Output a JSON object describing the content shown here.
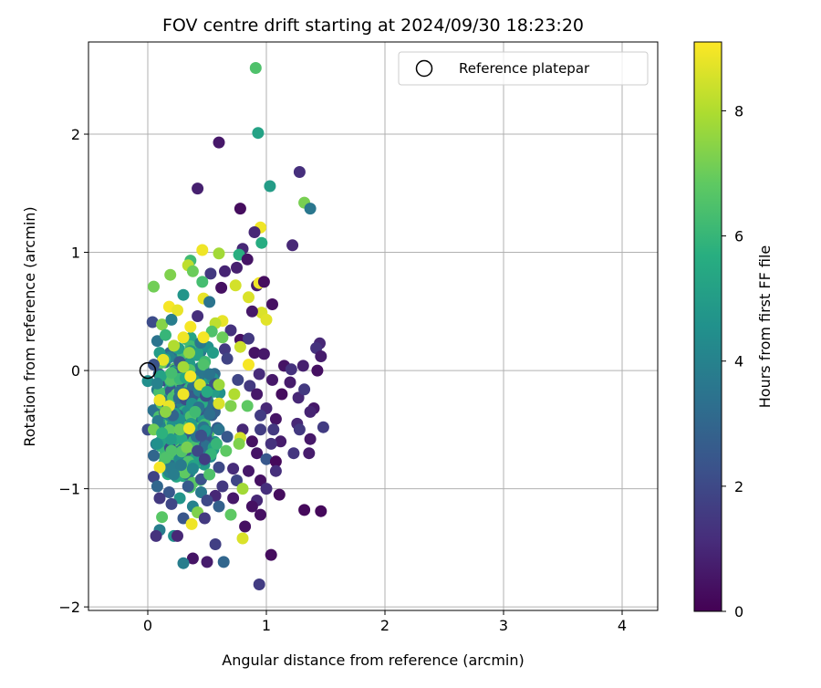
{
  "chart_data": {
    "type": "scatter",
    "title": "FOV centre drift starting at 2024/09/30 18:23:20",
    "xlabel": "Angular distance from reference (arcmin)",
    "ylabel": "Rotation from reference (arcmin)",
    "xlim": [
      -0.5,
      4.3
    ],
    "ylim": [
      -2.03,
      2.78
    ],
    "xticks": [
      0,
      1,
      2,
      3,
      4
    ],
    "yticks": [
      -2,
      -1,
      0,
      1,
      2
    ],
    "xtick_labels": [
      "0",
      "1",
      "2",
      "3",
      "4"
    ],
    "ytick_labels": [
      "−2",
      "−1",
      "0",
      "1",
      "2"
    ],
    "grid": true,
    "legend": {
      "placement": "top-right",
      "entries": [
        "Reference platepar"
      ]
    },
    "reference_point": {
      "label": "Reference platepar",
      "x": 0.0,
      "y": 0.0
    },
    "colorbar": {
      "label": "Hours from first FF file",
      "colormap": "viridis",
      "range": [
        0,
        9.1
      ],
      "ticks": [
        0,
        2,
        4,
        6,
        8
      ],
      "tick_labels": [
        "0",
        "2",
        "4",
        "6",
        "8"
      ]
    },
    "series": [
      {
        "points": [
          {
            "x": 0.91,
            "y": 2.56,
            "c": 6.5
          },
          {
            "x": 0.93,
            "y": 2.01,
            "c": 5.2
          },
          {
            "x": 0.6,
            "y": 1.93,
            "c": 0.6
          },
          {
            "x": 1.28,
            "y": 1.68,
            "c": 1.2
          },
          {
            "x": 1.03,
            "y": 1.56,
            "c": 5.0
          },
          {
            "x": 0.42,
            "y": 1.54,
            "c": 0.8
          },
          {
            "x": 1.32,
            "y": 1.42,
            "c": 7.2
          },
          {
            "x": 1.37,
            "y": 1.37,
            "c": 3.6
          },
          {
            "x": 0.78,
            "y": 1.37,
            "c": 0.3
          },
          {
            "x": 0.95,
            "y": 1.21,
            "c": 8.9
          },
          {
            "x": 0.9,
            "y": 1.17,
            "c": 1.0
          },
          {
            "x": 0.96,
            "y": 1.08,
            "c": 5.6
          },
          {
            "x": 1.22,
            "y": 1.06,
            "c": 1.0
          },
          {
            "x": 0.8,
            "y": 1.03,
            "c": 1.0
          },
          {
            "x": 0.77,
            "y": 0.98,
            "c": 5.7
          },
          {
            "x": 0.46,
            "y": 1.02,
            "c": 8.9
          },
          {
            "x": 0.6,
            "y": 0.99,
            "c": 7.8
          },
          {
            "x": 0.36,
            "y": 0.93,
            "c": 6.2
          },
          {
            "x": 0.34,
            "y": 0.89,
            "c": 8.2
          },
          {
            "x": 0.38,
            "y": 0.84,
            "c": 7.0
          },
          {
            "x": 0.19,
            "y": 0.81,
            "c": 7.3
          },
          {
            "x": 0.53,
            "y": 0.82,
            "c": 1.5
          },
          {
            "x": 0.65,
            "y": 0.84,
            "c": 0.9
          },
          {
            "x": 0.75,
            "y": 0.87,
            "c": 0.8
          },
          {
            "x": 0.84,
            "y": 0.94,
            "c": 0.5
          },
          {
            "x": 0.74,
            "y": 0.72,
            "c": 8.5
          },
          {
            "x": 0.92,
            "y": 0.72,
            "c": 0.7
          },
          {
            "x": 0.94,
            "y": 0.74,
            "c": 8.9
          },
          {
            "x": 0.98,
            "y": 0.75,
            "c": 0.3
          },
          {
            "x": 0.46,
            "y": 0.75,
            "c": 6.3
          },
          {
            "x": 0.05,
            "y": 0.71,
            "c": 7.1
          },
          {
            "x": 0.62,
            "y": 0.7,
            "c": 0.4
          },
          {
            "x": 0.85,
            "y": 0.62,
            "c": 8.6
          },
          {
            "x": 0.3,
            "y": 0.64,
            "c": 4.7
          },
          {
            "x": 0.47,
            "y": 0.61,
            "c": 8.8
          },
          {
            "x": 0.52,
            "y": 0.58,
            "c": 3.5
          },
          {
            "x": 1.05,
            "y": 0.56,
            "c": 0.4
          },
          {
            "x": 0.18,
            "y": 0.54,
            "c": 9.0
          },
          {
            "x": 0.25,
            "y": 0.51,
            "c": 8.8
          },
          {
            "x": 0.96,
            "y": 0.49,
            "c": 8.6
          },
          {
            "x": 1.0,
            "y": 0.43,
            "c": 8.7
          },
          {
            "x": 0.88,
            "y": 0.5,
            "c": 0.6
          },
          {
            "x": 0.42,
            "y": 0.46,
            "c": 1.2
          },
          {
            "x": 0.63,
            "y": 0.42,
            "c": 8.8
          },
          {
            "x": 0.04,
            "y": 0.41,
            "c": 2.1
          },
          {
            "x": 0.12,
            "y": 0.39,
            "c": 7.4
          },
          {
            "x": 0.2,
            "y": 0.43,
            "c": 3.8
          },
          {
            "x": 0.57,
            "y": 0.4,
            "c": 8.2
          },
          {
            "x": 0.36,
            "y": 0.37,
            "c": 9.0
          },
          {
            "x": 0.54,
            "y": 0.33,
            "c": 6.5
          },
          {
            "x": 0.7,
            "y": 0.34,
            "c": 1.3
          },
          {
            "x": 0.78,
            "y": 0.26,
            "c": 0.4
          },
          {
            "x": 0.85,
            "y": 0.27,
            "c": 1.5
          },
          {
            "x": 0.3,
            "y": 0.28,
            "c": 8.9
          },
          {
            "x": 0.47,
            "y": 0.28,
            "c": 9.0
          },
          {
            "x": 0.08,
            "y": 0.25,
            "c": 3.5
          },
          {
            "x": 0.15,
            "y": 0.3,
            "c": 6.0
          },
          {
            "x": 0.63,
            "y": 0.28,
            "c": 7.0
          },
          {
            "x": 0.22,
            "y": 0.21,
            "c": 8.0
          },
          {
            "x": 0.78,
            "y": 0.2,
            "c": 8.4
          },
          {
            "x": 1.45,
            "y": 0.23,
            "c": 1.0
          },
          {
            "x": 1.42,
            "y": 0.19,
            "c": 1.3
          },
          {
            "x": 1.46,
            "y": 0.12,
            "c": 0.7
          },
          {
            "x": 0.1,
            "y": 0.15,
            "c": 5.0
          },
          {
            "x": 0.35,
            "y": 0.15,
            "c": 7.5
          },
          {
            "x": 0.55,
            "y": 0.15,
            "c": 5.0
          },
          {
            "x": 0.65,
            "y": 0.18,
            "c": 1.5
          },
          {
            "x": 0.9,
            "y": 0.15,
            "c": 0.5
          },
          {
            "x": 0.98,
            "y": 0.14,
            "c": 0.6
          },
          {
            "x": 0.13,
            "y": 0.09,
            "c": 8.8
          },
          {
            "x": 0.05,
            "y": 0.05,
            "c": 2.3
          },
          {
            "x": 0.3,
            "y": 0.03,
            "c": 7.8
          },
          {
            "x": 0.47,
            "y": 0.05,
            "c": 6.5
          },
          {
            "x": 0.85,
            "y": 0.05,
            "c": 9.0
          },
          {
            "x": 0.67,
            "y": 0.1,
            "c": 1.8
          },
          {
            "x": 1.15,
            "y": 0.04,
            "c": 0.5
          },
          {
            "x": 1.21,
            "y": 0.01,
            "c": 1.3
          },
          {
            "x": 1.31,
            "y": 0.04,
            "c": 0.8
          },
          {
            "x": 1.43,
            "y": 0.0,
            "c": 0.4
          },
          {
            "x": 0.2,
            "y": -0.02,
            "c": 6.3
          },
          {
            "x": 0.36,
            "y": -0.05,
            "c": 9.0
          },
          {
            "x": 0.52,
            "y": -0.03,
            "c": 3.5
          },
          {
            "x": 0.76,
            "y": -0.08,
            "c": 1.9
          },
          {
            "x": 0.94,
            "y": -0.03,
            "c": 1.1
          },
          {
            "x": 1.05,
            "y": -0.08,
            "c": 0.6
          },
          {
            "x": 0.08,
            "y": -0.11,
            "c": 4.0
          },
          {
            "x": 0.44,
            "y": -0.12,
            "c": 8.5
          },
          {
            "x": 0.6,
            "y": -0.12,
            "c": 7.7
          },
          {
            "x": 0.86,
            "y": -0.13,
            "c": 1.5
          },
          {
            "x": 1.2,
            "y": -0.1,
            "c": 0.7
          },
          {
            "x": 0.3,
            "y": -0.2,
            "c": 8.9
          },
          {
            "x": 0.5,
            "y": -0.18,
            "c": 5.5
          },
          {
            "x": 0.73,
            "y": -0.2,
            "c": 8.0
          },
          {
            "x": 0.92,
            "y": -0.2,
            "c": 0.6
          },
          {
            "x": 1.13,
            "y": -0.2,
            "c": 0.3
          },
          {
            "x": 1.27,
            "y": -0.23,
            "c": 1.0
          },
          {
            "x": 1.32,
            "y": -0.16,
            "c": 1.5
          },
          {
            "x": 0.1,
            "y": -0.25,
            "c": 8.9
          },
          {
            "x": 0.18,
            "y": -0.3,
            "c": 8.8
          },
          {
            "x": 0.6,
            "y": -0.28,
            "c": 8.6
          },
          {
            "x": 0.7,
            "y": -0.3,
            "c": 7.3
          },
          {
            "x": 0.84,
            "y": -0.3,
            "c": 6.8
          },
          {
            "x": 1.0,
            "y": -0.32,
            "c": 1.0
          },
          {
            "x": 1.4,
            "y": -0.32,
            "c": 0.6
          },
          {
            "x": 1.37,
            "y": -0.35,
            "c": 0.9
          },
          {
            "x": 0.15,
            "y": -0.35,
            "c": 7.5
          },
          {
            "x": 0.4,
            "y": -0.35,
            "c": 6.2
          },
          {
            "x": 0.52,
            "y": -0.37,
            "c": 3.3
          },
          {
            "x": 0.95,
            "y": -0.38,
            "c": 1.6
          },
          {
            "x": 1.08,
            "y": -0.41,
            "c": 0.5
          },
          {
            "x": 1.26,
            "y": -0.45,
            "c": 1.0
          },
          {
            "x": 1.48,
            "y": -0.48,
            "c": 1.6
          },
          {
            "x": 1.28,
            "y": -0.5,
            "c": 1.5
          },
          {
            "x": 0.05,
            "y": -0.5,
            "c": 7.1
          },
          {
            "x": 0.27,
            "y": -0.5,
            "c": 7.0
          },
          {
            "x": 0.35,
            "y": -0.49,
            "c": 8.9
          },
          {
            "x": 0.6,
            "y": -0.5,
            "c": 3.5
          },
          {
            "x": 0.8,
            "y": -0.5,
            "c": 1.0
          },
          {
            "x": 0.95,
            "y": -0.5,
            "c": 1.6
          },
          {
            "x": 1.06,
            "y": -0.5,
            "c": 1.5
          },
          {
            "x": 0.12,
            "y": -0.53,
            "c": 5.8
          },
          {
            "x": 0.45,
            "y": -0.55,
            "c": 2.2
          },
          {
            "x": 0.67,
            "y": -0.56,
            "c": 2.5
          },
          {
            "x": 0.78,
            "y": -0.57,
            "c": 8.5
          },
          {
            "x": 0.88,
            "y": -0.6,
            "c": 0.4
          },
          {
            "x": 1.12,
            "y": -0.6,
            "c": 0.7
          },
          {
            "x": 1.37,
            "y": -0.58,
            "c": 0.6
          },
          {
            "x": 0.08,
            "y": -0.62,
            "c": 4.5
          },
          {
            "x": 0.33,
            "y": -0.65,
            "c": 7.2
          },
          {
            "x": 0.58,
            "y": -0.62,
            "c": 6.0
          },
          {
            "x": 0.77,
            "y": -0.62,
            "c": 7.3
          },
          {
            "x": 1.04,
            "y": -0.62,
            "c": 1.3
          },
          {
            "x": 0.2,
            "y": -0.68,
            "c": 6.5
          },
          {
            "x": 0.42,
            "y": -0.68,
            "c": 2.0
          },
          {
            "x": 0.66,
            "y": -0.68,
            "c": 6.8
          },
          {
            "x": 0.92,
            "y": -0.7,
            "c": 0.5
          },
          {
            "x": 1.23,
            "y": -0.7,
            "c": 1.4
          },
          {
            "x": 1.36,
            "y": -0.7,
            "c": 0.7
          },
          {
            "x": 0.05,
            "y": -0.72,
            "c": 3.0
          },
          {
            "x": 0.15,
            "y": -0.74,
            "c": 6.5
          },
          {
            "x": 0.48,
            "y": -0.75,
            "c": 1.6
          },
          {
            "x": 1.0,
            "y": -0.75,
            "c": 2.5
          },
          {
            "x": 1.08,
            "y": -0.77,
            "c": 0.2
          },
          {
            "x": 0.28,
            "y": -0.8,
            "c": 3.7
          },
          {
            "x": 0.1,
            "y": -0.82,
            "c": 9.0
          },
          {
            "x": 0.38,
            "y": -0.83,
            "c": 4.2
          },
          {
            "x": 0.6,
            "y": -0.82,
            "c": 2.0
          },
          {
            "x": 0.72,
            "y": -0.83,
            "c": 1.1
          },
          {
            "x": 0.85,
            "y": -0.85,
            "c": 0.6
          },
          {
            "x": 1.08,
            "y": -0.85,
            "c": 1.2
          },
          {
            "x": 0.05,
            "y": -0.9,
            "c": 1.8
          },
          {
            "x": 0.22,
            "y": -0.88,
            "c": 3.8
          },
          {
            "x": 0.45,
            "y": -0.92,
            "c": 2.3
          },
          {
            "x": 0.52,
            "y": -0.88,
            "c": 6.5
          },
          {
            "x": 0.75,
            "y": -0.93,
            "c": 1.9
          },
          {
            "x": 0.95,
            "y": -0.93,
            "c": 0.4
          },
          {
            "x": 0.08,
            "y": -0.98,
            "c": 3.0
          },
          {
            "x": 0.34,
            "y": -0.98,
            "c": 2.6
          },
          {
            "x": 0.63,
            "y": -0.98,
            "c": 1.5
          },
          {
            "x": 0.8,
            "y": -1.0,
            "c": 7.8
          },
          {
            "x": 1.0,
            "y": -1.0,
            "c": 1.2
          },
          {
            "x": 1.11,
            "y": -1.05,
            "c": 0.3
          },
          {
            "x": 0.18,
            "y": -1.03,
            "c": 2.5
          },
          {
            "x": 0.45,
            "y": -1.03,
            "c": 3.7
          },
          {
            "x": 0.57,
            "y": -1.06,
            "c": 1.0
          },
          {
            "x": 0.1,
            "y": -1.08,
            "c": 1.5
          },
          {
            "x": 0.27,
            "y": -1.08,
            "c": 4.7
          },
          {
            "x": 0.5,
            "y": -1.1,
            "c": 2.0
          },
          {
            "x": 0.72,
            "y": -1.08,
            "c": 0.6
          },
          {
            "x": 0.92,
            "y": -1.1,
            "c": 1.0
          },
          {
            "x": 0.2,
            "y": -1.13,
            "c": 1.9
          },
          {
            "x": 0.38,
            "y": -1.15,
            "c": 4.0
          },
          {
            "x": 0.6,
            "y": -1.15,
            "c": 2.8
          },
          {
            "x": 0.88,
            "y": -1.15,
            "c": 0.4
          },
          {
            "x": 1.32,
            "y": -1.18,
            "c": 0.2
          },
          {
            "x": 1.46,
            "y": -1.19,
            "c": 0.2
          },
          {
            "x": 0.42,
            "y": -1.2,
            "c": 7.3
          },
          {
            "x": 0.12,
            "y": -1.24,
            "c": 6.7
          },
          {
            "x": 0.3,
            "y": -1.25,
            "c": 2.4
          },
          {
            "x": 0.48,
            "y": -1.25,
            "c": 1.5
          },
          {
            "x": 0.7,
            "y": -1.22,
            "c": 6.8
          },
          {
            "x": 0.95,
            "y": -1.22,
            "c": 0.4
          },
          {
            "x": 0.37,
            "y": -1.3,
            "c": 8.9
          },
          {
            "x": 0.82,
            "y": -1.32,
            "c": 0.4
          },
          {
            "x": 0.1,
            "y": -1.35,
            "c": 3.8
          },
          {
            "x": 0.07,
            "y": -1.4,
            "c": 1.3
          },
          {
            "x": 0.22,
            "y": -1.4,
            "c": 4.5
          },
          {
            "x": 0.25,
            "y": -1.4,
            "c": 1.0
          },
          {
            "x": 0.8,
            "y": -1.42,
            "c": 8.6
          },
          {
            "x": 0.57,
            "y": -1.47,
            "c": 1.7
          },
          {
            "x": 1.04,
            "y": -1.56,
            "c": 0.3
          },
          {
            "x": 0.38,
            "y": -1.59,
            "c": 0.5
          },
          {
            "x": 0.3,
            "y": -1.63,
            "c": 3.8
          },
          {
            "x": 0.5,
            "y": -1.62,
            "c": 0.7
          },
          {
            "x": 0.64,
            "y": -1.62,
            "c": 3.0
          },
          {
            "x": 0.94,
            "y": -1.81,
            "c": 1.6
          }
        ]
      },
      {
        "dense_cluster": true,
        "x_range": [
          0.0,
          0.75
        ],
        "y_range": [
          -1.15,
          0.45
        ],
        "count": 520,
        "c_range": [
          2.0,
          7.0
        ]
      }
    ]
  }
}
